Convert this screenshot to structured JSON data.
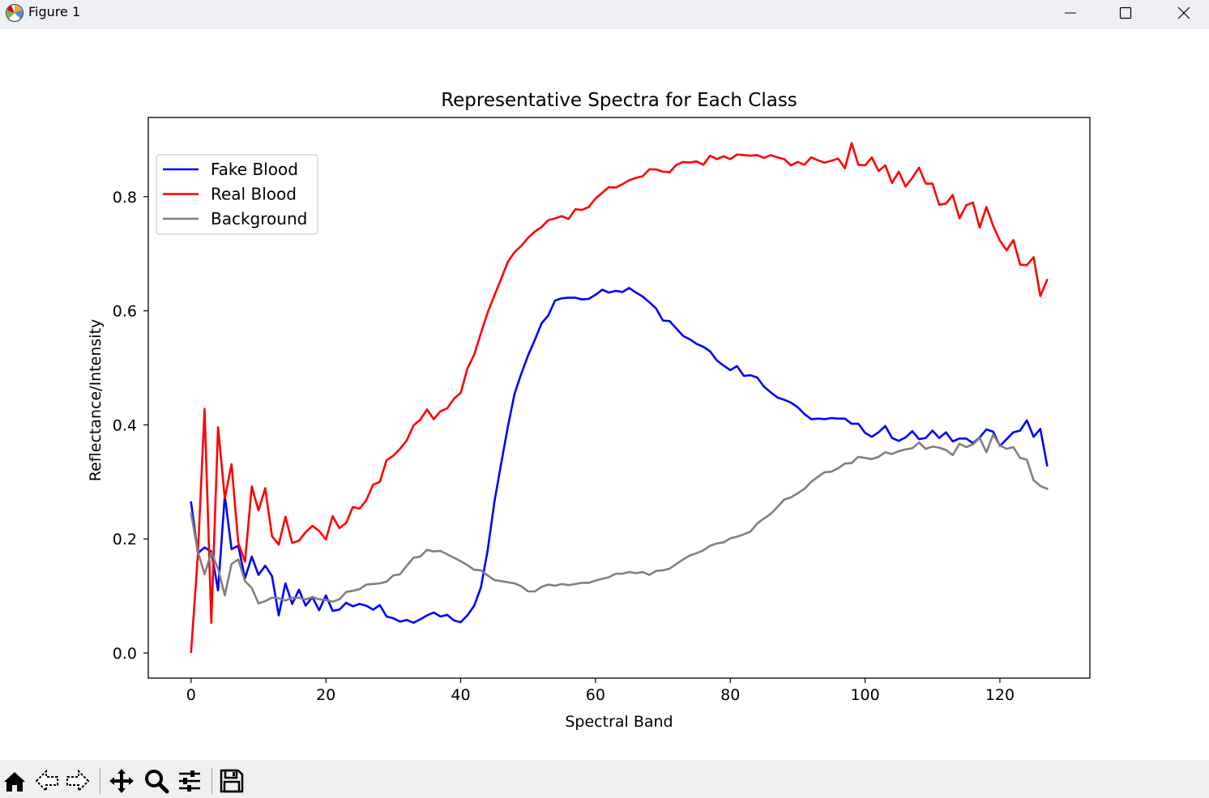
{
  "window": {
    "title": "Figure 1",
    "minimize_icon": "minimize-icon",
    "maximize_icon": "maximize-icon",
    "close_icon": "close-icon"
  },
  "toolbar": {
    "buttons": [
      {
        "name": "home",
        "icon": "home-icon"
      },
      {
        "name": "back",
        "icon": "back-arrow-icon"
      },
      {
        "name": "forward",
        "icon": "forward-arrow-icon"
      },
      {
        "name": "pan",
        "icon": "move-icon"
      },
      {
        "name": "zoom",
        "icon": "magnifier-icon"
      },
      {
        "name": "configure",
        "icon": "sliders-icon"
      },
      {
        "name": "save",
        "icon": "save-icon"
      }
    ]
  },
  "chart_data": {
    "type": "line",
    "title": "Representative Spectra for Each Class",
    "xlabel": "Spectral Band",
    "ylabel": "Reflectance/Intensity",
    "xlim": [
      -6.35,
      133.35
    ],
    "ylim": [
      -0.044,
      0.939
    ],
    "xticks": [
      0,
      20,
      40,
      60,
      80,
      100,
      120
    ],
    "yticks": [
      0.0,
      0.2,
      0.4,
      0.6,
      0.8
    ],
    "ytick_labels": [
      "0.0",
      "0.2",
      "0.4",
      "0.6",
      "0.8"
    ],
    "grid": false,
    "legend_position": "upper left",
    "x": [
      0,
      1,
      2,
      3,
      4,
      5,
      6,
      7,
      8,
      9,
      10,
      11,
      12,
      13,
      14,
      15,
      16,
      17,
      18,
      19,
      20,
      21,
      22,
      23,
      24,
      25,
      26,
      27,
      28,
      29,
      30,
      31,
      32,
      33,
      34,
      35,
      36,
      37,
      38,
      39,
      40,
      41,
      42,
      43,
      44,
      45,
      46,
      47,
      48,
      49,
      50,
      51,
      52,
      53,
      54,
      55,
      56,
      57,
      58,
      59,
      60,
      61,
      62,
      63,
      64,
      65,
      66,
      67,
      68,
      69,
      70,
      71,
      72,
      73,
      74,
      75,
      76,
      77,
      78,
      79,
      80,
      81,
      82,
      83,
      84,
      85,
      86,
      87,
      88,
      89,
      90,
      91,
      92,
      93,
      94,
      95,
      96,
      97,
      98,
      99,
      100,
      101,
      102,
      103,
      104,
      105,
      106,
      107,
      108,
      109,
      110,
      111,
      112,
      113,
      114,
      115,
      116,
      117,
      118,
      119,
      120,
      121,
      122,
      123,
      124,
      125,
      126,
      127
    ],
    "series": [
      {
        "name": "Fake Blood",
        "color": "#0000ff",
        "values": [
          0.264,
          0.175,
          0.185,
          0.178,
          0.11,
          0.276,
          0.182,
          0.188,
          0.131,
          0.169,
          0.137,
          0.153,
          0.135,
          0.066,
          0.122,
          0.086,
          0.111,
          0.083,
          0.098,
          0.075,
          0.101,
          0.074,
          0.076,
          0.088,
          0.082,
          0.086,
          0.083,
          0.076,
          0.084,
          0.064,
          0.061,
          0.055,
          0.058,
          0.053,
          0.059,
          0.066,
          0.071,
          0.064,
          0.067,
          0.057,
          0.054,
          0.066,
          0.083,
          0.115,
          0.18,
          0.265,
          0.332,
          0.397,
          0.455,
          0.49,
          0.522,
          0.549,
          0.578,
          0.592,
          0.618,
          0.622,
          0.623,
          0.623,
          0.62,
          0.621,
          0.628,
          0.637,
          0.632,
          0.635,
          0.633,
          0.64,
          0.632,
          0.625,
          0.615,
          0.604,
          0.583,
          0.582,
          0.569,
          0.556,
          0.55,
          0.542,
          0.537,
          0.529,
          0.513,
          0.504,
          0.496,
          0.503,
          0.486,
          0.487,
          0.483,
          0.467,
          0.457,
          0.448,
          0.444,
          0.439,
          0.431,
          0.419,
          0.41,
          0.411,
          0.41,
          0.412,
          0.411,
          0.411,
          0.402,
          0.402,
          0.386,
          0.379,
          0.387,
          0.398,
          0.377,
          0.372,
          0.378,
          0.389,
          0.375,
          0.377,
          0.39,
          0.377,
          0.387,
          0.371,
          0.376,
          0.376,
          0.368,
          0.378,
          0.392,
          0.388,
          0.363,
          0.375,
          0.387,
          0.39,
          0.408,
          0.379,
          0.393,
          0.329
        ]
      },
      {
        "name": "Real Blood",
        "color": "#ff0000",
        "values": [
          0.002,
          0.171,
          0.428,
          0.053,
          0.396,
          0.271,
          0.331,
          0.193,
          0.16,
          0.292,
          0.25,
          0.289,
          0.205,
          0.19,
          0.239,
          0.193,
          0.197,
          0.212,
          0.223,
          0.214,
          0.199,
          0.24,
          0.219,
          0.228,
          0.256,
          0.253,
          0.268,
          0.295,
          0.3,
          0.338,
          0.346,
          0.358,
          0.373,
          0.399,
          0.409,
          0.427,
          0.41,
          0.424,
          0.429,
          0.446,
          0.456,
          0.499,
          0.523,
          0.561,
          0.597,
          0.627,
          0.656,
          0.686,
          0.703,
          0.714,
          0.728,
          0.739,
          0.747,
          0.759,
          0.762,
          0.766,
          0.761,
          0.778,
          0.777,
          0.782,
          0.797,
          0.807,
          0.817,
          0.816,
          0.822,
          0.829,
          0.833,
          0.836,
          0.848,
          0.848,
          0.844,
          0.843,
          0.856,
          0.861,
          0.86,
          0.862,
          0.856,
          0.872,
          0.866,
          0.871,
          0.866,
          0.874,
          0.873,
          0.872,
          0.873,
          0.868,
          0.873,
          0.869,
          0.866,
          0.855,
          0.861,
          0.856,
          0.869,
          0.864,
          0.86,
          0.863,
          0.867,
          0.85,
          0.894,
          0.856,
          0.855,
          0.869,
          0.845,
          0.855,
          0.824,
          0.844,
          0.818,
          0.833,
          0.851,
          0.823,
          0.823,
          0.786,
          0.788,
          0.803,
          0.762,
          0.785,
          0.79,
          0.746,
          0.782,
          0.749,
          0.723,
          0.706,
          0.724,
          0.681,
          0.68,
          0.694,
          0.626,
          0.654
        ]
      },
      {
        "name": "Background",
        "color": "#808080",
        "values": [
          0.245,
          0.178,
          0.138,
          0.176,
          0.148,
          0.101,
          0.156,
          0.164,
          0.126,
          0.114,
          0.087,
          0.091,
          0.097,
          0.096,
          0.092,
          0.097,
          0.097,
          0.094,
          0.098,
          0.094,
          0.093,
          0.09,
          0.094,
          0.107,
          0.109,
          0.112,
          0.12,
          0.121,
          0.122,
          0.125,
          0.136,
          0.138,
          0.153,
          0.167,
          0.169,
          0.181,
          0.178,
          0.179,
          0.173,
          0.167,
          0.161,
          0.154,
          0.146,
          0.145,
          0.136,
          0.128,
          0.126,
          0.124,
          0.122,
          0.117,
          0.108,
          0.108,
          0.116,
          0.12,
          0.118,
          0.121,
          0.119,
          0.121,
          0.123,
          0.123,
          0.127,
          0.13,
          0.133,
          0.139,
          0.139,
          0.142,
          0.14,
          0.142,
          0.137,
          0.144,
          0.145,
          0.148,
          0.156,
          0.164,
          0.171,
          0.175,
          0.18,
          0.188,
          0.192,
          0.194,
          0.201,
          0.204,
          0.208,
          0.213,
          0.227,
          0.236,
          0.244,
          0.256,
          0.269,
          0.273,
          0.28,
          0.288,
          0.3,
          0.309,
          0.317,
          0.318,
          0.324,
          0.332,
          0.333,
          0.344,
          0.342,
          0.34,
          0.344,
          0.352,
          0.349,
          0.354,
          0.357,
          0.359,
          0.369,
          0.358,
          0.362,
          0.36,
          0.356,
          0.347,
          0.367,
          0.361,
          0.366,
          0.377,
          0.352,
          0.383,
          0.364,
          0.358,
          0.361,
          0.342,
          0.339,
          0.303,
          0.293,
          0.288
        ]
      }
    ]
  }
}
